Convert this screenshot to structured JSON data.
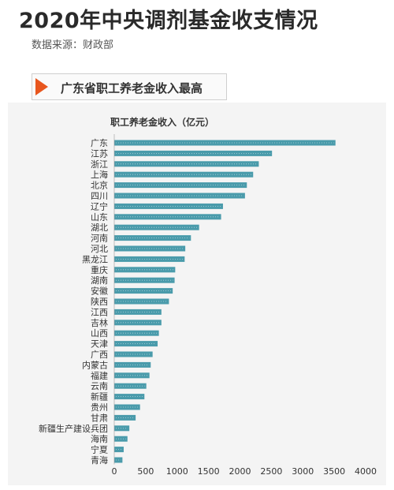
{
  "header": {
    "title": "2020年中央调剂基金收支情况",
    "source": "数据来源：财政部",
    "banner": "广东省职工养老金收入最高"
  },
  "colors": {
    "bar": "#4a9bab",
    "accent": "#e8561e"
  },
  "chart_data": {
    "type": "bar",
    "orientation": "horizontal",
    "title": "职工养老金收入（亿元）",
    "categories": [
      "广东",
      "江苏",
      "浙江",
      "上海",
      "北京",
      "四川",
      "辽宁",
      "山东",
      "湖北",
      "河南",
      "河北",
      "黑龙江",
      "重庆",
      "湖南",
      "安徽",
      "陕西",
      "江西",
      "吉林",
      "山西",
      "天津",
      "广西",
      "内蒙古",
      "福建",
      "云南",
      "新疆",
      "贵州",
      "甘肃",
      "新疆生产建设兵团",
      "海南",
      "宁夏",
      "青海"
    ],
    "values": [
      3520,
      2510,
      2300,
      2210,
      2110,
      2080,
      1730,
      1700,
      1350,
      1220,
      1130,
      1120,
      970,
      960,
      930,
      870,
      750,
      750,
      710,
      690,
      610,
      580,
      560,
      510,
      480,
      410,
      340,
      240,
      210,
      150,
      130
    ],
    "xlim": [
      0,
      4000
    ],
    "xticks": [
      "0",
      "500",
      "1000",
      "1500",
      "2000",
      "2500",
      "3000",
      "3500",
      "4000"
    ],
    "grid": false
  }
}
